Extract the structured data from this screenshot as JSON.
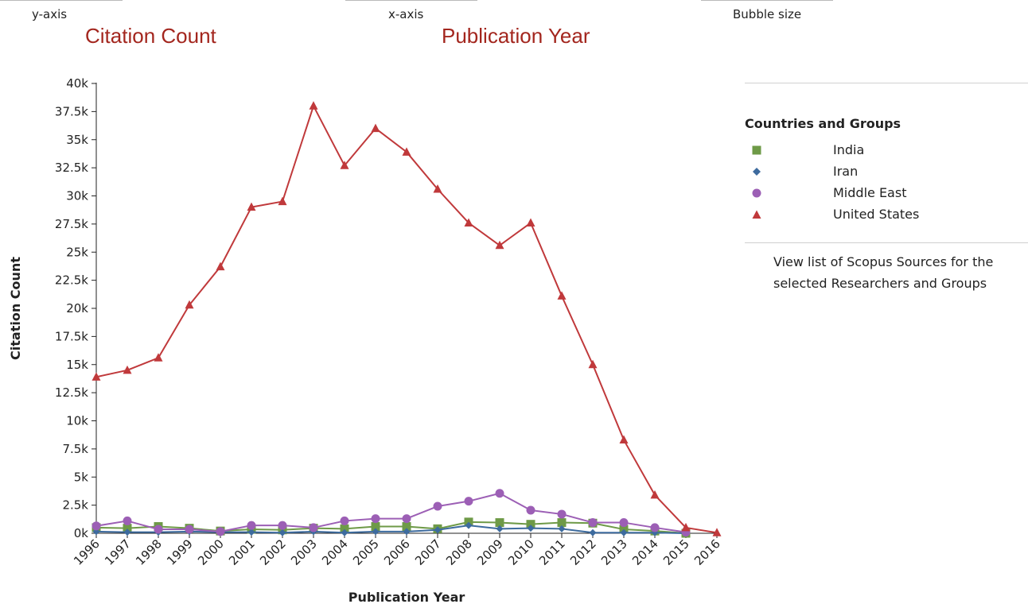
{
  "controls": {
    "y_axis_label": "y-axis",
    "y_axis_value": "Citation Count",
    "x_axis_label": "x-axis",
    "x_axis_value": "Publication Year",
    "bubble_label": "Bubble size"
  },
  "legend": {
    "title": "Countries and Groups",
    "items": [
      {
        "label": "India",
        "color": "#6e9a47",
        "shape": "square"
      },
      {
        "label": "Iran",
        "color": "#3d6b9e",
        "shape": "diamond"
      },
      {
        "label": "Middle East",
        "color": "#9c5fb5",
        "shape": "circle"
      },
      {
        "label": "United States",
        "color": "#c0393b",
        "shape": "triangle"
      }
    ]
  },
  "sources_link": "View list of Scopus Sources for the selected Researchers and Groups",
  "chart_data": {
    "type": "line",
    "xlabel": "Publication Year",
    "ylabel": "Citation Count",
    "ylim": [
      0,
      40000
    ],
    "yticks": [
      "0k",
      "2.5k",
      "5k",
      "7.5k",
      "10k",
      "12.5k",
      "15k",
      "17.5k",
      "20k",
      "22.5k",
      "25k",
      "27.5k",
      "30k",
      "32.5k",
      "35k",
      "37.5k",
      "40k"
    ],
    "categories": [
      "1996",
      "1997",
      "1998",
      "1999",
      "2000",
      "2001",
      "2002",
      "2003",
      "2004",
      "2005",
      "2006",
      "2007",
      "2008",
      "2009",
      "2010",
      "2011",
      "2012",
      "2013",
      "2014",
      "2015",
      "2016"
    ],
    "series": [
      {
        "name": "India",
        "color": "#6e9a47",
        "shape": "square",
        "values": [
          500,
          450,
          600,
          450,
          200,
          350,
          300,
          450,
          400,
          600,
          600,
          400,
          1000,
          950,
          800,
          950,
          900,
          350,
          200,
          0,
          null
        ]
      },
      {
        "name": "Iran",
        "color": "#3d6b9e",
        "shape": "diamond",
        "values": [
          150,
          100,
          100,
          150,
          100,
          100,
          50,
          150,
          50,
          150,
          150,
          300,
          700,
          400,
          450,
          400,
          50,
          50,
          50,
          0,
          null
        ]
      },
      {
        "name": "Middle East",
        "color": "#9c5fb5",
        "shape": "circle",
        "values": [
          650,
          1100,
          350,
          350,
          150,
          700,
          700,
          500,
          1100,
          1300,
          1300,
          2400,
          2850,
          3550,
          2050,
          1700,
          950,
          950,
          500,
          100,
          null
        ]
      },
      {
        "name": "United States",
        "color": "#c0393b",
        "shape": "triangle",
        "values": [
          13900,
          14500,
          15600,
          20300,
          23700,
          29000,
          29500,
          38000,
          32700,
          36000,
          33900,
          30600,
          27600,
          25600,
          27600,
          21100,
          15000,
          8300,
          3400,
          500,
          50
        ]
      }
    ]
  }
}
